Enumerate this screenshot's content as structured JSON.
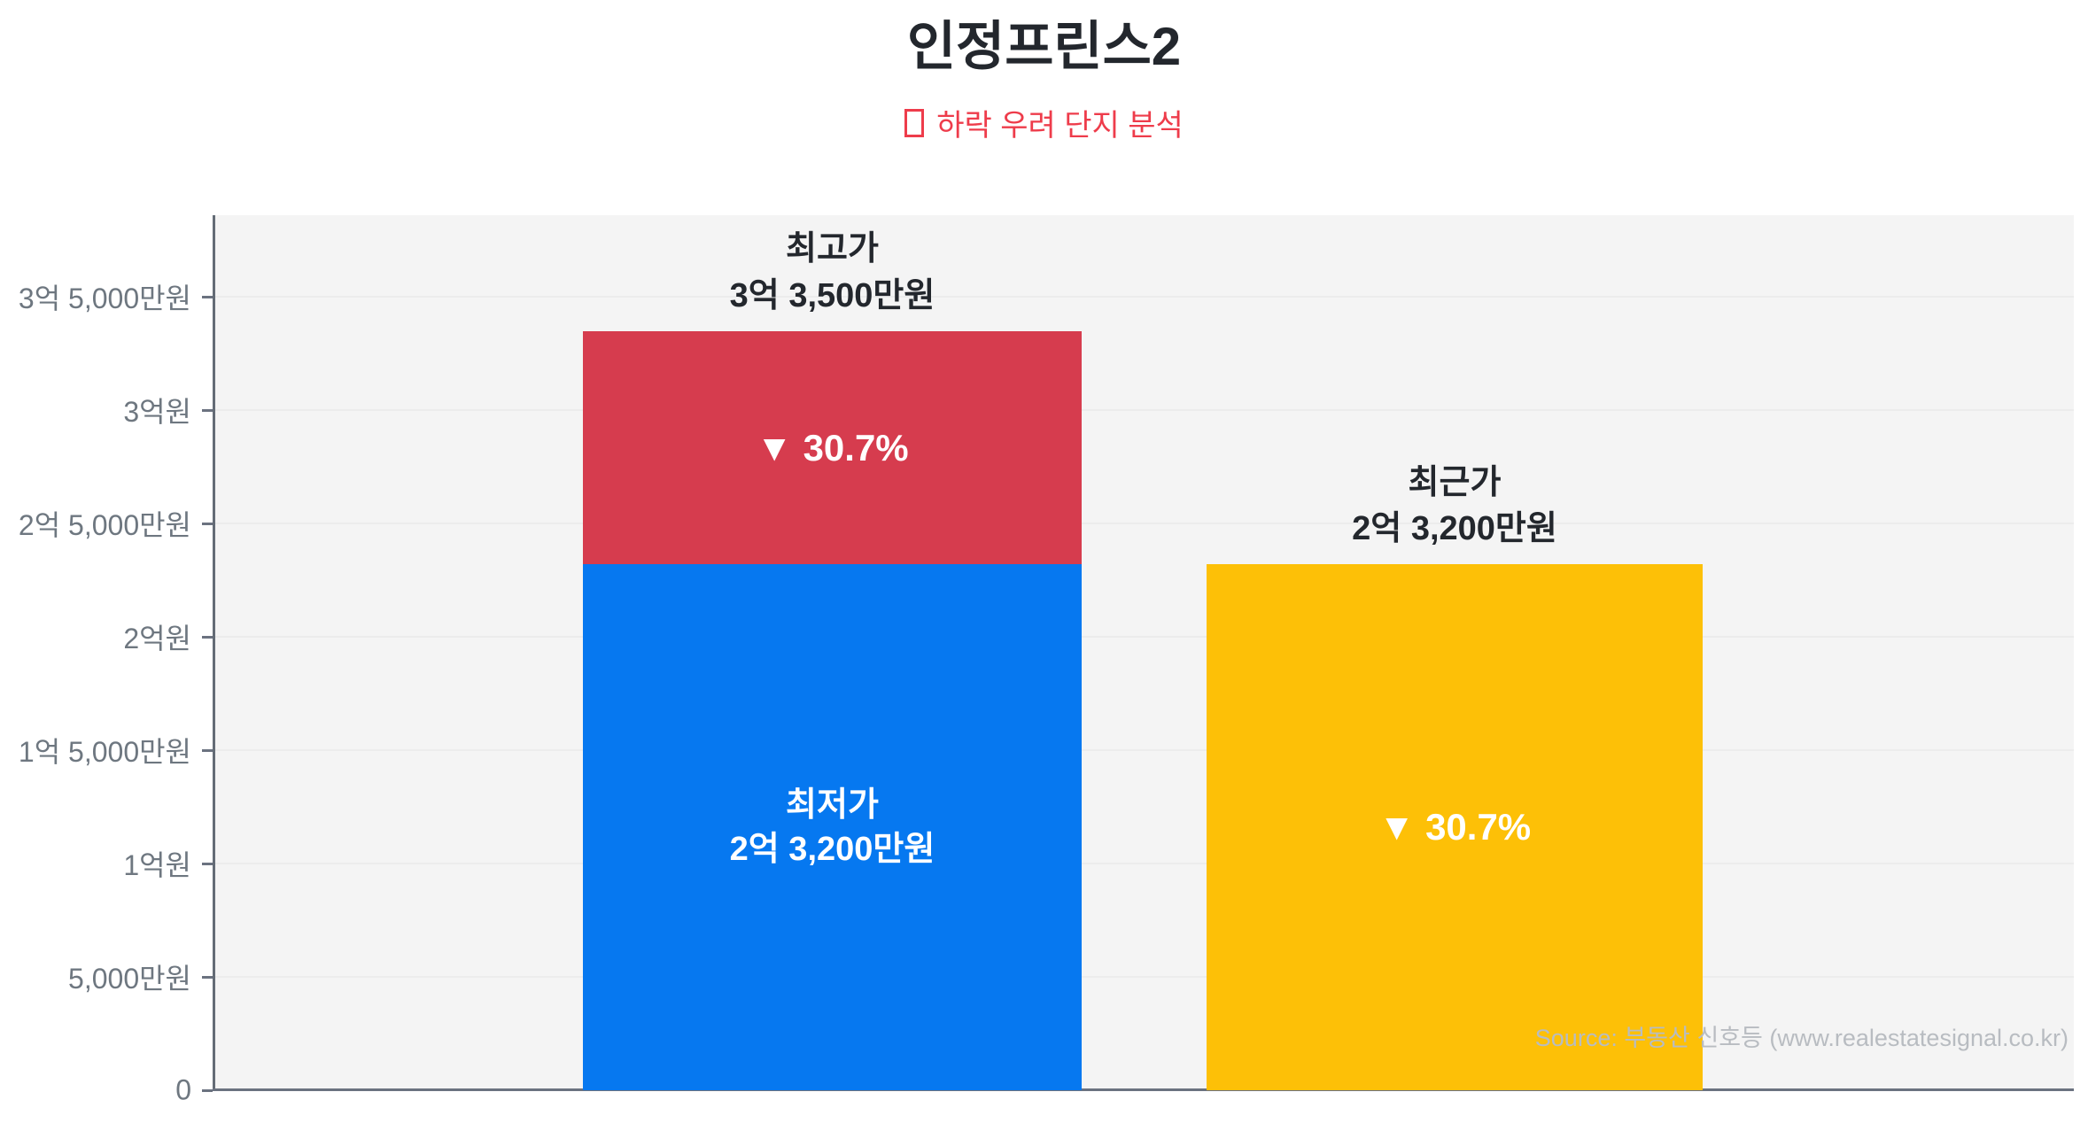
{
  "header": {
    "title": "인정프린스2",
    "subtitle": {
      "icon": "box-glyph",
      "text": "하락 우려 단지 분석",
      "color": "#ee3c4b"
    }
  },
  "source_note": "Source: 부동산 신호등 (www.realestatesignal.co.kr)",
  "chart_data": {
    "type": "bar",
    "stacked": true,
    "title": "인정프린스2",
    "xlabel": "",
    "ylabel": "",
    "unit": "원 (KRW)",
    "ylim": [
      0,
      386000000
    ],
    "grid": true,
    "legend": false,
    "plot_bg_color": "#f4f4f4",
    "grid_color": "#ececec",
    "axis_color": "#6b7280",
    "tick_label_color": "#6e7780",
    "yticks": [
      {
        "value": 0,
        "label": "0"
      },
      {
        "value": 50000000,
        "label": "5,000만원"
      },
      {
        "value": 100000000,
        "label": "1억원"
      },
      {
        "value": 150000000,
        "label": "1억 5,000만원"
      },
      {
        "value": 200000000,
        "label": "2억원"
      },
      {
        "value": 250000000,
        "label": "2억 5,000만원"
      },
      {
        "value": 300000000,
        "label": "3억원"
      },
      {
        "value": 350000000,
        "label": "3억 5,000만원"
      }
    ],
    "bars": [
      {
        "id": "highest-price-stack",
        "top_label_lines": [
          "최고가",
          "3억 3,500만원"
        ],
        "total_value": 335000000,
        "segments": [
          {
            "id": "lowest-price",
            "value": 232000000,
            "color": "#0678f0",
            "text_lines": [
              "최저가",
              "2억 3,200만원"
            ],
            "text_color": "#ffffff",
            "text_size": 38
          },
          {
            "id": "decline-range",
            "value": 103000000,
            "color": "#d63c4e",
            "text_lines": [
              "▼ 30.7%"
            ],
            "text_color": "#ffffff",
            "text_size": 42
          }
        ]
      },
      {
        "id": "recent-price-bar",
        "top_label_lines": [
          "최근가",
          "2억 3,200만원"
        ],
        "total_value": 232000000,
        "segments": [
          {
            "id": "recent-price",
            "value": 232000000,
            "color": "#fdc007",
            "text_lines": [
              "▼ 30.7%"
            ],
            "text_color": "#ffffff",
            "text_size": 42
          }
        ]
      }
    ],
    "annotations": [
      {
        "text": "▼ 30.7%",
        "meaning": "decline percentage shown inside bars"
      }
    ]
  }
}
